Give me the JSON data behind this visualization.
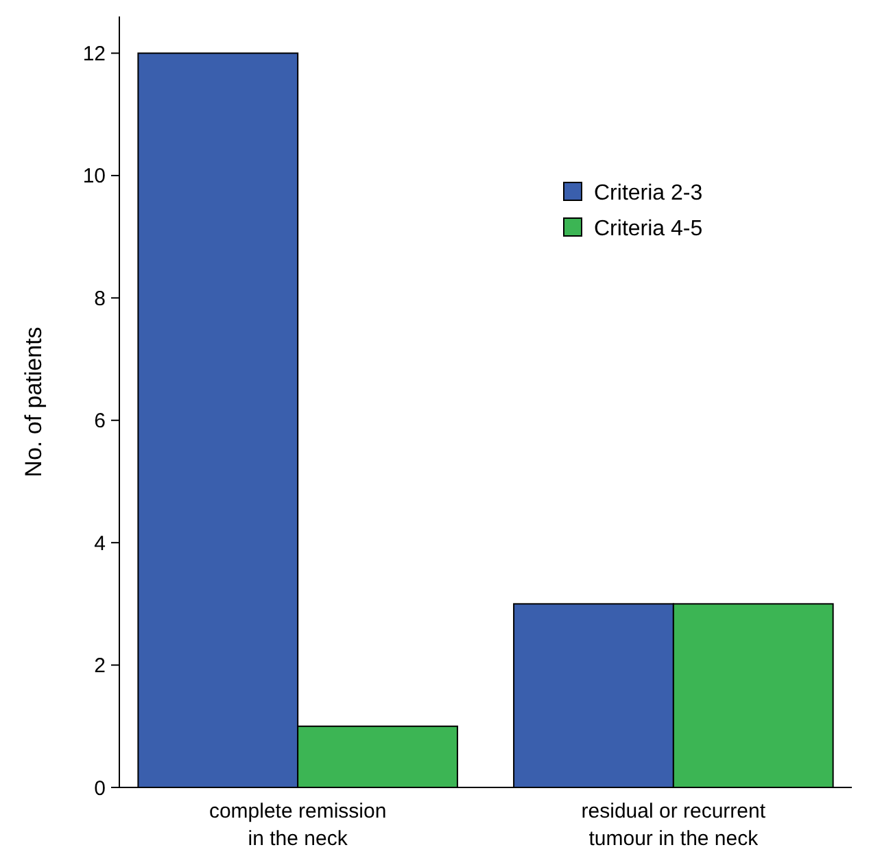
{
  "chart_data": {
    "type": "bar",
    "ylabel": "No. of patients",
    "categories": [
      "complete remission\nin the neck",
      "residual or recurrent\ntumour in the neck"
    ],
    "series": [
      {
        "name": "Criteria 2-3",
        "color": "#3a5fad",
        "values": [
          12,
          3
        ]
      },
      {
        "name": "Criteria 4-5",
        "color": "#3cb554",
        "values": [
          1,
          3
        ]
      }
    ],
    "ylim": [
      0,
      12.6
    ],
    "yticks": [
      0,
      2,
      4,
      6,
      8,
      10,
      12
    ],
    "grid": false,
    "legend": "top right"
  }
}
